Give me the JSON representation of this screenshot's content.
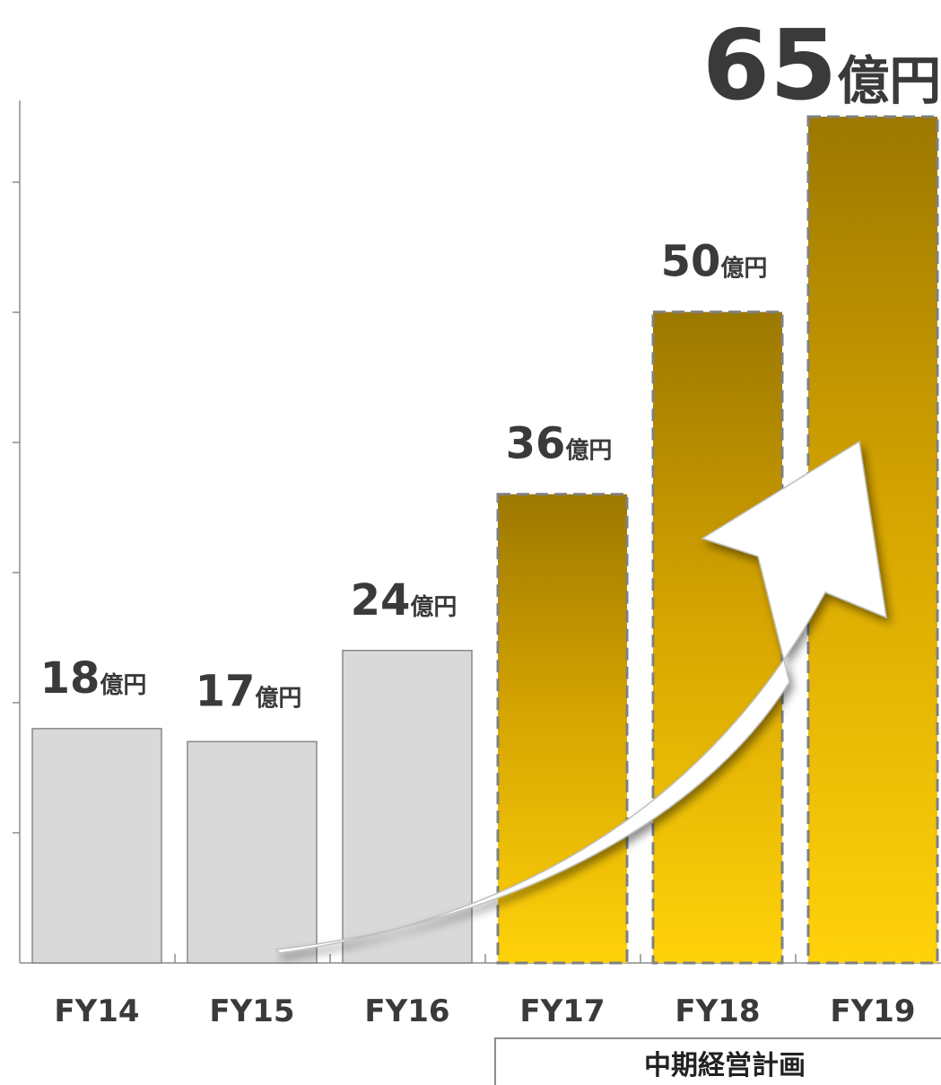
{
  "chart_data": {
    "type": "bar",
    "categories": [
      "FY14",
      "FY15",
      "FY16",
      "FY17",
      "FY18",
      "FY19"
    ],
    "values": [
      18,
      17,
      24,
      36,
      50,
      65
    ],
    "value_labels": [
      "18",
      "17",
      "24",
      "36",
      "50",
      "65"
    ],
    "unit": "億円",
    "ylim": [
      0,
      66
    ],
    "grid": false,
    "planned_range": {
      "from": "FY17",
      "to": "FY19",
      "label": "中期経営計画"
    },
    "colors": {
      "actual_fill": "#d9d9d9",
      "actual_stroke": "#888888",
      "plan_top": "#9c7800",
      "plan_bottom": "#ffd20a",
      "plan_stroke": "#808080",
      "text": "#3a3a3a"
    },
    "overlay": "growth-arrow"
  }
}
